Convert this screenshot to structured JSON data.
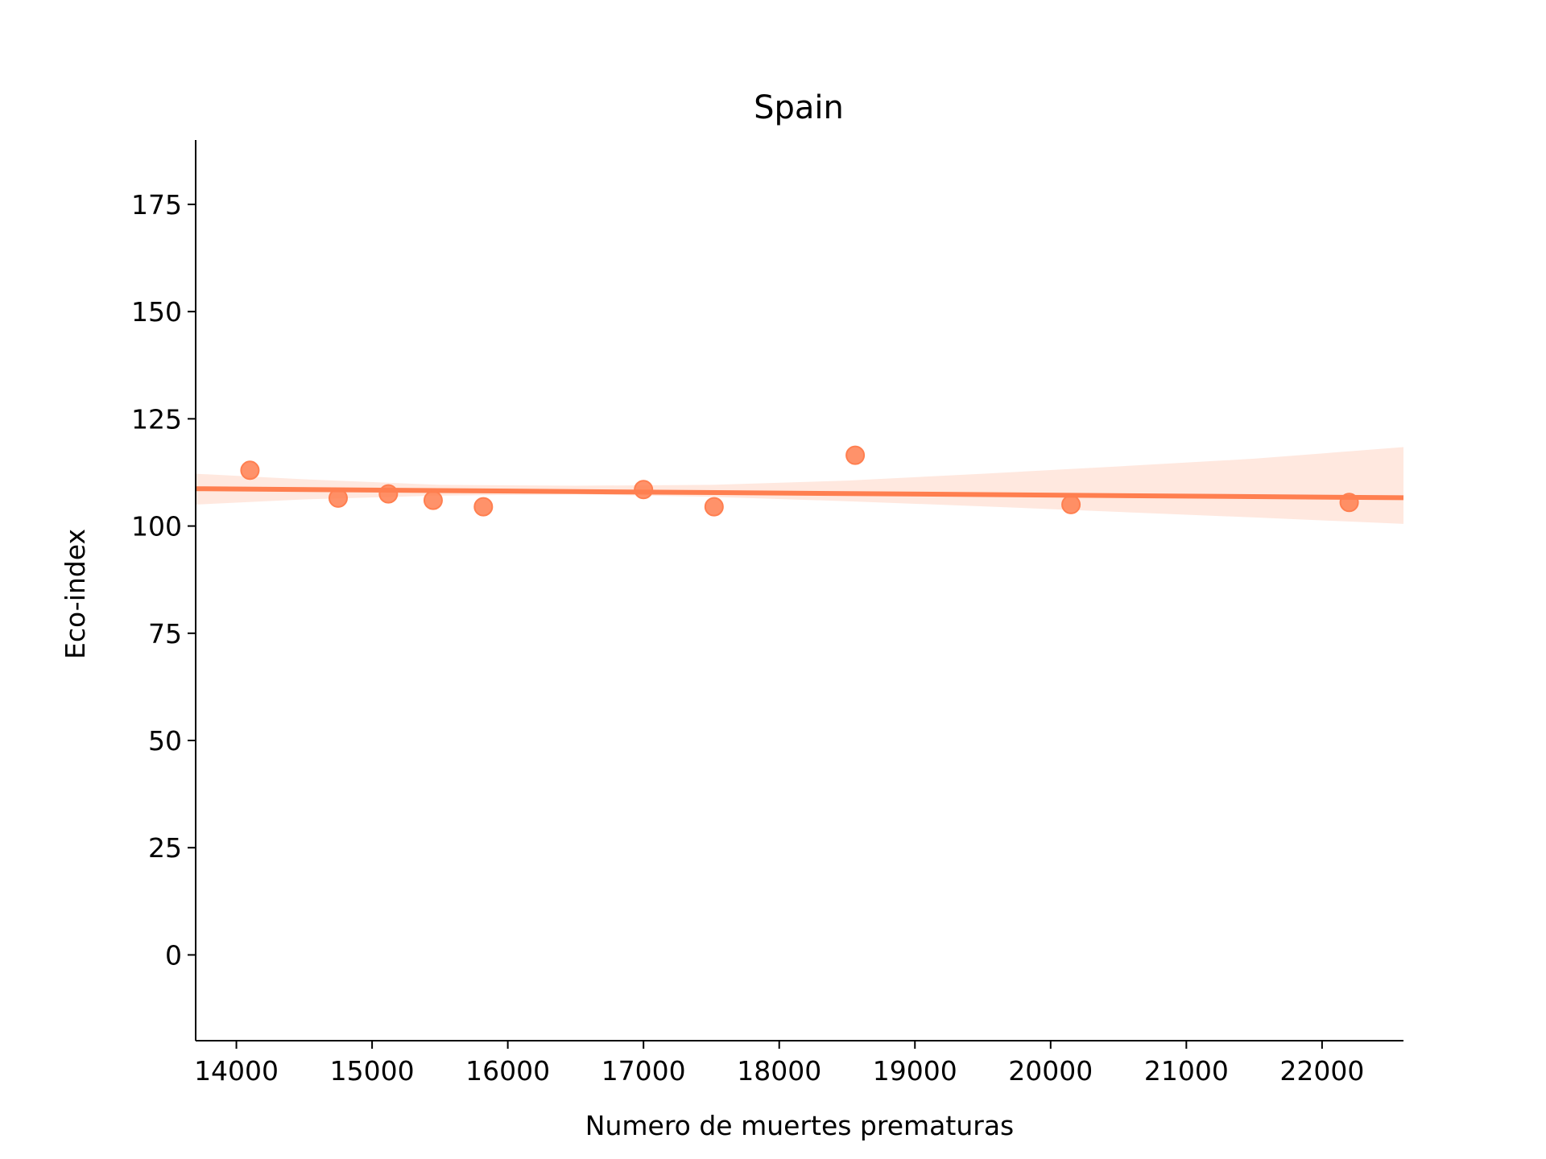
{
  "chart_data": {
    "type": "scatter",
    "title": "Spain",
    "xlabel": "Numero de muertes prematuras",
    "ylabel": "Eco-index",
    "xlim": [
      13700,
      22600
    ],
    "ylim": [
      -20,
      190
    ],
    "xticks": [
      14000,
      15000,
      16000,
      17000,
      18000,
      19000,
      20000,
      21000,
      22000
    ],
    "yticks": [
      0,
      25,
      50,
      75,
      100,
      125,
      150,
      175
    ],
    "color": "#ff7f50",
    "points": [
      {
        "x": 14100,
        "y": 113
      },
      {
        "x": 14750,
        "y": 106.5
      },
      {
        "x": 15120,
        "y": 107.5
      },
      {
        "x": 15450,
        "y": 106
      },
      {
        "x": 15820,
        "y": 104.5
      },
      {
        "x": 17000,
        "y": 108.5
      },
      {
        "x": 17520,
        "y": 104.5
      },
      {
        "x": 18560,
        "y": 116.5
      },
      {
        "x": 20150,
        "y": 105
      },
      {
        "x": 22200,
        "y": 105.5
      }
    ],
    "regression": {
      "x0": 13700,
      "y0": 108.7,
      "x1": 22600,
      "y1": 106.6
    },
    "confidence_band": [
      {
        "x": 13700,
        "lo": 105.0,
        "hi": 112.2
      },
      {
        "x": 14500,
        "lo": 106.2,
        "hi": 110.9
      },
      {
        "x": 15500,
        "lo": 107.1,
        "hi": 109.6
      },
      {
        "x": 16500,
        "lo": 107.4,
        "hi": 109.4
      },
      {
        "x": 17500,
        "lo": 106.8,
        "hi": 109.6
      },
      {
        "x": 18500,
        "lo": 105.8,
        "hi": 110.6
      },
      {
        "x": 19500,
        "lo": 104.6,
        "hi": 112.2
      },
      {
        "x": 20500,
        "lo": 103.3,
        "hi": 113.9
      },
      {
        "x": 21500,
        "lo": 102.0,
        "hi": 115.7
      },
      {
        "x": 22600,
        "lo": 100.5,
        "hi": 118.4
      }
    ]
  }
}
